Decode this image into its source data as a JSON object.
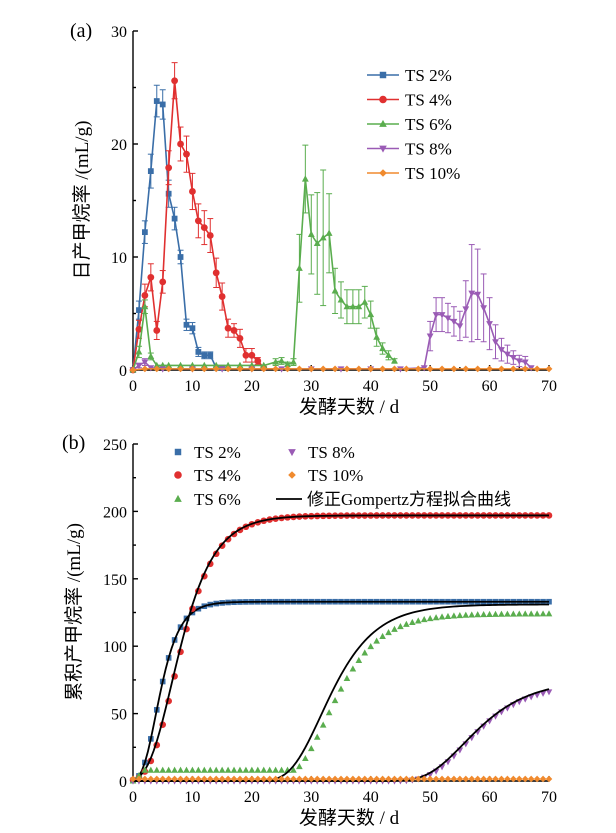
{
  "colors": {
    "ts2": "#3a6ea8",
    "ts4": "#e03030",
    "ts6": "#5aad4e",
    "ts8": "#9a5bb5",
    "ts10": "#f08a2e",
    "fit": "#000000"
  },
  "chart_data": [
    {
      "panel_label": "(a)",
      "type": "line",
      "xlabel": "发酵天数 / d",
      "ylabel": "日产甲烷率 /(mL/g)",
      "xlim": [
        0,
        70
      ],
      "ylim": [
        0,
        30
      ],
      "xticks": [
        0,
        10,
        20,
        30,
        40,
        50,
        60,
        70
      ],
      "yticks": [
        0,
        10,
        20,
        30
      ],
      "grid": false,
      "legend_position": "top-right",
      "series": [
        {
          "name": "TS 2%",
          "marker": "square",
          "color_key": "ts2",
          "x": [
            0,
            1,
            2,
            3,
            4,
            5,
            6,
            7,
            8,
            9,
            10,
            11,
            12,
            13,
            14,
            15
          ],
          "y": [
            0,
            5.3,
            12.2,
            17.6,
            23.8,
            23.5,
            15.6,
            13.4,
            10.0,
            4.0,
            3.7,
            1.6,
            1.3,
            1.3,
            0.2,
            0.2
          ],
          "err": [
            0,
            0.8,
            1.0,
            1.5,
            1.4,
            1.3,
            1.2,
            1.0,
            0.6,
            0.5,
            0.5,
            0.4,
            0.3,
            0.3,
            0,
            0
          ]
        },
        {
          "name": "TS 4%",
          "marker": "circle",
          "color_key": "ts4",
          "x": [
            0,
            1,
            2,
            3,
            4,
            5,
            6,
            7,
            8,
            9,
            10,
            11,
            12,
            13,
            14,
            15,
            16,
            17,
            18,
            19,
            20,
            21,
            22
          ],
          "y": [
            0,
            3.6,
            6.6,
            8.2,
            3.5,
            7.8,
            17.9,
            25.6,
            20.0,
            19.1,
            15.8,
            13.2,
            12.6,
            11.9,
            8.6,
            6.5,
            3.7,
            3.5,
            2.8,
            1.3,
            1.3,
            0.8,
            0.2
          ],
          "err": [
            0,
            0.8,
            1.0,
            1.2,
            0.8,
            1.0,
            1.5,
            1.6,
            1.5,
            1.6,
            1.6,
            1.5,
            1.5,
            1.5,
            1.3,
            1.2,
            0.8,
            0.6,
            0.8,
            0.6,
            0.6,
            0.3,
            0
          ]
        },
        {
          "name": "TS 6%",
          "marker": "triangle-up",
          "color_key": "ts6",
          "x": [
            0,
            1,
            2,
            3,
            4,
            5,
            6,
            8,
            10,
            12,
            14,
            16,
            18,
            20,
            22,
            24,
            25,
            26,
            27,
            28,
            29,
            30,
            31,
            32,
            33,
            34,
            35,
            36,
            37,
            38,
            39,
            40,
            41,
            42,
            43,
            44
          ],
          "y": [
            0,
            1.6,
            5.6,
            1.2,
            0.4,
            0.4,
            0.4,
            0.4,
            0.4,
            0.4,
            0.4,
            0.4,
            0.4,
            0.4,
            0.4,
            0.7,
            0.8,
            0.5,
            0.7,
            9.0,
            16.9,
            12.0,
            11.2,
            11.7,
            12.1,
            7.0,
            6.2,
            5.6,
            5.6,
            5.6,
            6.0,
            4.9,
            2.9,
            1.9,
            1.3,
            0.8
          ],
          "err": [
            0,
            0.5,
            0.6,
            0.3,
            0,
            0,
            0,
            0,
            0,
            0,
            0,
            0,
            0,
            0,
            0,
            0.3,
            0.3,
            0.2,
            0.3,
            3.0,
            3.0,
            3.5,
            4.5,
            6.0,
            3.5,
            2.0,
            1.6,
            1.5,
            1.5,
            1.5,
            1.4,
            1.2,
            0.8,
            0.5,
            0.4,
            0.2
          ]
        },
        {
          "name": "TS 8%",
          "marker": "triangle-down",
          "color_key": "ts8",
          "x": [
            0,
            1,
            2,
            3,
            5,
            10,
            15,
            20,
            25,
            30,
            35,
            40,
            45,
            49,
            50,
            51,
            52,
            53,
            54,
            55,
            56,
            57,
            58,
            59,
            60,
            61,
            62,
            63,
            64,
            65,
            66,
            67
          ],
          "y": [
            0,
            0.4,
            0.7,
            0.2,
            0.1,
            0.1,
            0.1,
            0.1,
            0.1,
            0.1,
            0.1,
            0.1,
            0.1,
            0.2,
            3.0,
            4.9,
            4.9,
            4.6,
            4.3,
            3.9,
            5.4,
            6.8,
            6.7,
            5.5,
            4.1,
            2.5,
            1.8,
            1.4,
            1.1,
            0.8,
            0.7,
            0.2
          ],
          "err": [
            0,
            0.2,
            0.3,
            0,
            0,
            0,
            0,
            0,
            0,
            0,
            0,
            0,
            0,
            0,
            1.3,
            1.5,
            1.5,
            1.3,
            1.3,
            1.3,
            2.5,
            4.3,
            4.0,
            3.0,
            2.3,
            1.5,
            1.0,
            0.8,
            0.6,
            0.5,
            0.5,
            0
          ]
        },
        {
          "name": "TS 10%",
          "marker": "diamond",
          "color_key": "ts10",
          "x": [
            0,
            2,
            4,
            6,
            8,
            10,
            12,
            14,
            16,
            18,
            20,
            22,
            24,
            26,
            28,
            30,
            32,
            34,
            36,
            38,
            40,
            42,
            44,
            46,
            48,
            50,
            52,
            54,
            56,
            58,
            60,
            62,
            64,
            66,
            68,
            70
          ],
          "y": [
            0,
            0.1,
            0.1,
            0.1,
            0.1,
            0.1,
            0.1,
            0.1,
            0.1,
            0.1,
            0.1,
            0.1,
            0.1,
            0.1,
            0.1,
            0.1,
            0.1,
            0.1,
            0.1,
            0.1,
            0.1,
            0.1,
            0.1,
            0.1,
            0.1,
            0.1,
            0.1,
            0.1,
            0.1,
            0.1,
            0.1,
            0.1,
            0.1,
            0.1,
            0.1,
            0.1
          ]
        }
      ]
    },
    {
      "panel_label": "(b)",
      "type": "scatter",
      "xlabel": "发酵天数 / d",
      "ylabel": "累积产甲烷率 /(mL/g)",
      "xlim": [
        0,
        70
      ],
      "ylim": [
        0,
        250
      ],
      "xticks": [
        0,
        10,
        20,
        30,
        40,
        50,
        60,
        70
      ],
      "yticks": [
        0,
        50,
        100,
        150,
        200,
        250
      ],
      "grid": false,
      "legend_position": "top-left",
      "fit_label": "修正Gompertz方程拟合曲线",
      "series": [
        {
          "name": "TS 2%",
          "marker": "square",
          "color_key": "ts2",
          "curve": {
            "P": 133,
            "R": 22,
            "lambda": 1.6,
            "start": 0,
            "end": 70,
            "step": 1
          },
          "fit": {
            "P": 133,
            "R": 22,
            "lambda": 1.6
          }
        },
        {
          "name": "TS 4%",
          "marker": "circle",
          "color_key": "ts4",
          "curve": {
            "P": 197,
            "R": 18.5,
            "lambda": 2.8,
            "start": 0,
            "end": 70,
            "step": 1
          },
          "fit": {
            "P": 197,
            "R": 18.5,
            "lambda": 2.6
          }
        },
        {
          "name": "TS 6%",
          "marker": "triangle-up",
          "color_key": "ts6",
          "curve": {
            "P": 124,
            "R": 9.2,
            "lambda": 27.5,
            "start": 0,
            "end": 70,
            "step": 1,
            "offset": 8
          },
          "fit": {
            "P": 131,
            "R": 9.5,
            "lambda": 26.5
          }
        },
        {
          "name": "TS 8%",
          "marker": "triangle-down",
          "color_key": "ts8",
          "curve": {
            "P": 72,
            "R": 4.6,
            "lambda": 50.0,
            "start": 0,
            "end": 70,
            "step": 1
          },
          "fit": {
            "P": 75,
            "R": 4.5,
            "lambda": 49.5
          }
        },
        {
          "name": "TS 10%",
          "marker": "diamond",
          "color_key": "ts10",
          "constant": 1.5,
          "start": 0,
          "end": 70,
          "step": 1
        }
      ]
    }
  ]
}
